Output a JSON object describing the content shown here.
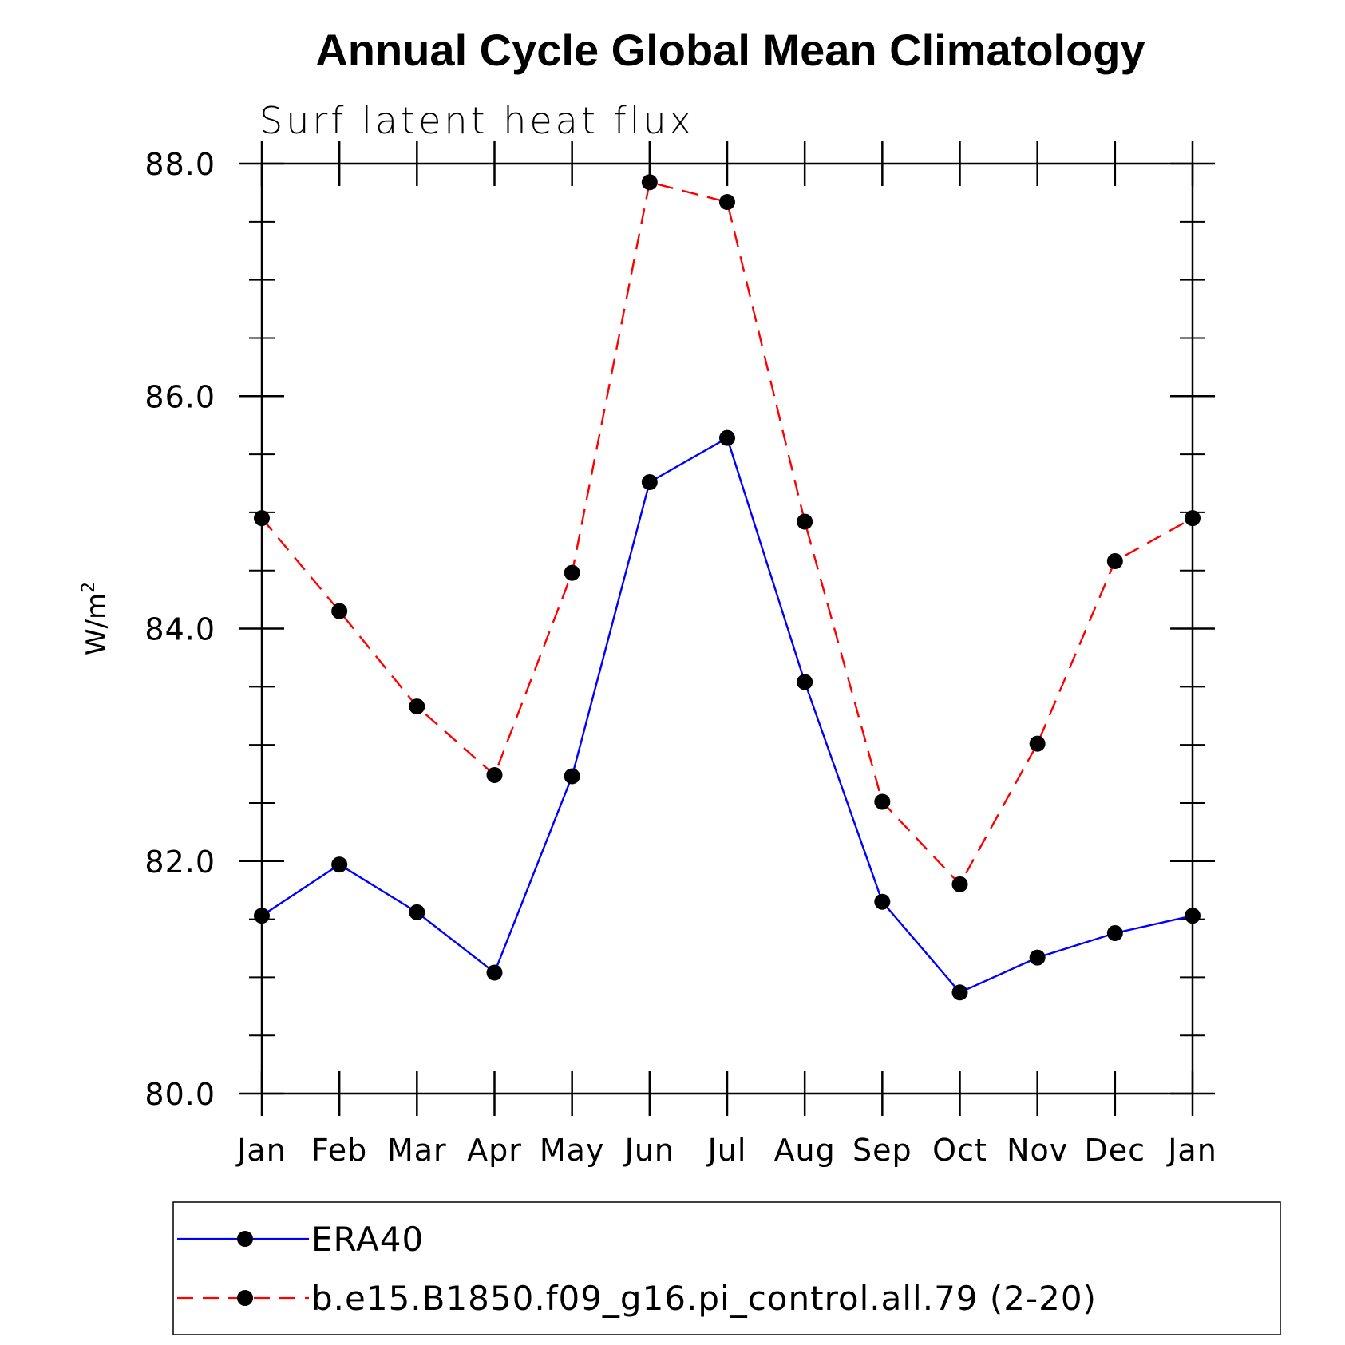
{
  "chart_data": {
    "type": "line",
    "title": "Annual Cycle Global Mean Climatology",
    "subtitle": "Surf latent heat flux",
    "ylabel": "W/m",
    "ylabel_sup": "2",
    "categories": [
      "Jan",
      "Feb",
      "Mar",
      "Apr",
      "May",
      "Jun",
      "Jul",
      "Aug",
      "Sep",
      "Oct",
      "Nov",
      "Dec",
      "Jan"
    ],
    "ylim": [
      80.0,
      88.0
    ],
    "yticks": [
      "80.0",
      "82.0",
      "84.0",
      "86.0",
      "88.0"
    ],
    "grid": false,
    "legend_position": "bottom",
    "series": [
      {
        "name": "ERA40",
        "color": "#0000ff",
        "dash": "solid",
        "values": [
          81.53,
          81.97,
          81.56,
          81.04,
          82.73,
          85.26,
          85.64,
          83.54,
          81.65,
          80.87,
          81.17,
          81.38,
          81.53
        ]
      },
      {
        "name": "b.e15.B1850.f09_g16.pi_control.all.79 (2-20)",
        "color": "#ff0000",
        "dash": "dashed",
        "values": [
          84.95,
          84.15,
          83.33,
          82.74,
          84.48,
          87.84,
          87.67,
          84.92,
          82.51,
          81.8,
          83.01,
          84.58,
          84.95
        ]
      }
    ]
  }
}
